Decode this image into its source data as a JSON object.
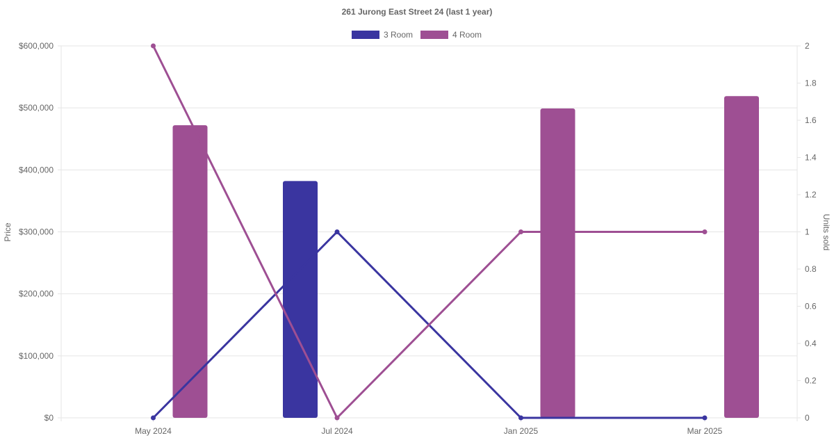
{
  "chart_data": {
    "type": "bar",
    "title": "261 Jurong East Street 24 (last 1 year)",
    "categories": [
      "May 2024",
      "Jul 2024",
      "Jan 2025",
      "Mar 2025"
    ],
    "series": [
      {
        "name": "3 Room",
        "type": "bar",
        "axis": "left",
        "color": "#3a35a0",
        "values": [
          null,
          382000,
          null,
          null
        ]
      },
      {
        "name": "4 Room",
        "type": "bar",
        "axis": "left",
        "color": "#9e4f93",
        "values": [
          472000,
          null,
          499000,
          519000
        ]
      },
      {
        "name": "3 Room",
        "type": "line",
        "axis": "right",
        "color": "#3a35a0",
        "values": [
          0,
          1,
          0,
          0
        ]
      },
      {
        "name": "4 Room",
        "type": "line",
        "axis": "right",
        "color": "#9e4f93",
        "values": [
          2,
          0,
          1,
          1
        ]
      }
    ],
    "legend": [
      "3 Room",
      "4 Room"
    ],
    "legend_position": "top",
    "ylabel": "Price",
    "y2label": "Units sold",
    "ylim": [
      0,
      600000
    ],
    "y2lim": [
      0,
      2
    ],
    "yticks": [
      "$0",
      "$100,000",
      "$200,000",
      "$300,000",
      "$400,000",
      "$500,000",
      "$600,000"
    ],
    "y2ticks": [
      "0",
      "0.2",
      "0.4",
      "0.6",
      "0.8",
      "1",
      "1.2",
      "1.4",
      "1.6",
      "1.8",
      "2"
    ],
    "grid": true
  }
}
